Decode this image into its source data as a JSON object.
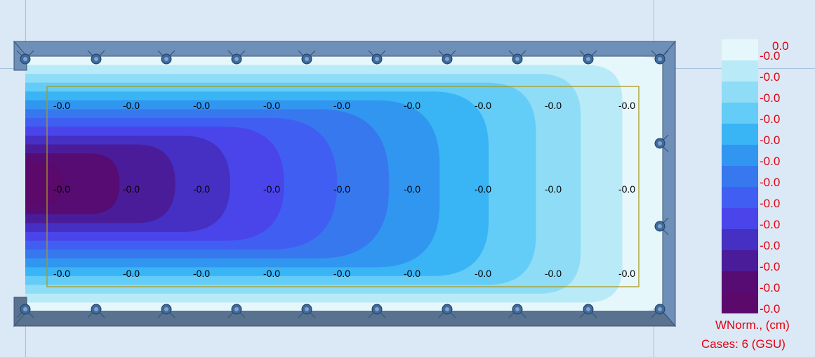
{
  "colors": {
    "background": "#dbe8f5",
    "slab_edge": "#e6f7fb",
    "wall": "#58728f",
    "wall_light": "#6d8fb8",
    "support": "#3f6a9a",
    "contour_ramp": [
      "#e6f7fb",
      "#b9eaf8",
      "#8fdcf6",
      "#63ccf7",
      "#39b4f5",
      "#3196f0",
      "#3778ef",
      "#405ff2",
      "#4a45ea",
      "#4530c3",
      "#4b1c9a",
      "#560c73",
      "#5b0a6c"
    ],
    "legend_text": "#e3000f",
    "mesh_outline": "#a99a1e"
  },
  "grid_values": {
    "row1": [
      "-0.0",
      "-0.0",
      "-0.0",
      "-0.0",
      "-0.0",
      "-0.0",
      "-0.0",
      "-0.0",
      "-0.0"
    ],
    "row2": [
      "-0.0",
      "-0.0",
      "-0.0",
      "-0.0",
      "-0.0",
      "-0.0",
      "-0.0",
      "-0.0",
      "-0.0"
    ],
    "row3": [
      "-0.0",
      "-0.0",
      "-0.0",
      "-0.0",
      "-0.0",
      "-0.0",
      "-0.0",
      "-0.0",
      "-0.0"
    ]
  },
  "legend": {
    "top_value": "0.0",
    "values": [
      "-0.0",
      "-0.0",
      "-0.0",
      "-0.0",
      "-0.0",
      "-0.0",
      "-0.0",
      "-0.0",
      "-0.0",
      "-0.0",
      "-0.0",
      "-0.0",
      "-0.0"
    ],
    "unit_label": "WNorm., (cm)",
    "cases_label": "Cases: 6 (GSU)"
  },
  "icons": [
    "support-node-icon"
  ]
}
